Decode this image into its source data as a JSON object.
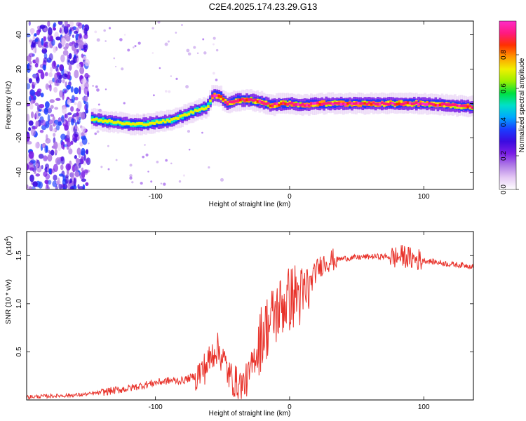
{
  "title": "C2E4.2025.174.23.29.G13",
  "chart_data": [
    {
      "type": "heatmap",
      "xlabel": "Height of straight line (km)",
      "ylabel": "Frequency (Hz)",
      "xlim": [
        -196,
        137
      ],
      "ylim": [
        -50,
        48
      ],
      "xticks": [
        -100,
        0,
        100
      ],
      "yticks": [
        -40,
        -20,
        0,
        20,
        40
      ],
      "colorbar": {
        "label": "Normalized spectral amplitude",
        "range": [
          0,
          1
        ],
        "ticks": [
          "0.0",
          "0.2",
          "0.4",
          "0.6",
          "0.8"
        ],
        "colors": [
          "#ffffff",
          "#e4c8f4",
          "#b07be6",
          "#7a1ee6",
          "#3b0be0",
          "#1a3cff",
          "#00a8ff",
          "#00e0c8",
          "#00e040",
          "#9cf000",
          "#f0f000",
          "#ff9a00",
          "#ff3000",
          "#ff1a80",
          "#ff2cc8"
        ]
      },
      "ridge": {
        "x": [
          -148,
          -140,
          -130,
          -120,
          -110,
          -100,
          -90,
          -80,
          -70,
          -62,
          -58,
          -52,
          -48,
          -40,
          -30,
          -22,
          -15,
          -5,
          0,
          10,
          20,
          40,
          60,
          80,
          100,
          120,
          137
        ],
        "y": [
          -9,
          -10,
          -11,
          -12,
          -12,
          -11,
          -10,
          -7,
          -4,
          -2,
          5,
          4,
          0,
          2,
          2,
          1,
          -1,
          0,
          0,
          -1,
          0,
          0,
          0,
          0,
          0,
          -1,
          -2
        ]
      },
      "noise_region": {
        "x": [
          -196,
          -150
        ],
        "y": [
          -50,
          48
        ]
      }
    },
    {
      "type": "line",
      "xlabel": "Height of straight line (km)",
      "ylabel": "SNR (10 * v/v)",
      "yexponent": "(x10",
      "yexponent_power": "4",
      "xlim": [
        -196,
        137
      ],
      "ylim": [
        0,
        1.75
      ],
      "xticks": [
        -100,
        0,
        100
      ],
      "yticks": [
        0.5,
        1.0,
        1.5
      ],
      "line_color": "#e8322a",
      "series": {
        "x": [
          -196,
          -180,
          -160,
          -150,
          -140,
          -130,
          -120,
          -110,
          -100,
          -90,
          -80,
          -70,
          -65,
          -60,
          -55,
          -50,
          -45,
          -40,
          -35,
          -30,
          -25,
          -20,
          -15,
          -10,
          -5,
          0,
          5,
          10,
          15,
          20,
          25,
          30,
          40,
          50,
          60,
          70,
          80,
          85,
          90,
          95,
          100,
          110,
          120,
          130,
          137
        ],
        "y": [
          0.03,
          0.04,
          0.05,
          0.06,
          0.08,
          0.1,
          0.12,
          0.15,
          0.18,
          0.2,
          0.2,
          0.25,
          0.3,
          0.4,
          0.55,
          0.45,
          0.25,
          0.18,
          0.15,
          0.25,
          0.5,
          0.7,
          0.8,
          0.9,
          1.0,
          1.05,
          1.1,
          1.05,
          1.2,
          1.35,
          1.42,
          1.45,
          1.47,
          1.48,
          1.49,
          1.49,
          1.48,
          1.5,
          1.47,
          1.46,
          1.45,
          1.43,
          1.41,
          1.4,
          1.39
        ]
      }
    }
  ]
}
